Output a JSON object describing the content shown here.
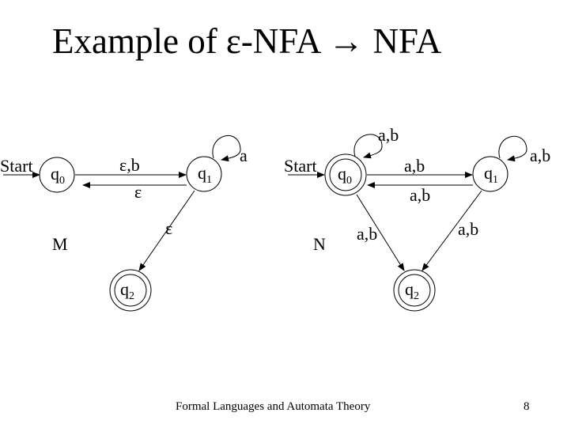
{
  "slide": {
    "title": "Example of ε-NFA → NFA",
    "footer": "Formal Languages and Automata Theory",
    "page_number": "8"
  },
  "diagrams": {
    "M": {
      "name": "M",
      "start_label": "Start",
      "states": [
        {
          "id": "q0",
          "base": "q",
          "sub": "0",
          "accepting": false
        },
        {
          "id": "q1",
          "base": "q",
          "sub": "1",
          "accepting": false
        },
        {
          "id": "q2",
          "base": "q",
          "sub": "2",
          "accepting": true
        }
      ],
      "transitions": [
        {
          "from": "q0",
          "to": "q1",
          "label": "ε,b"
        },
        {
          "from": "q1",
          "to": "q0",
          "label": "ε"
        },
        {
          "from": "q1",
          "to": "q1",
          "label": "a"
        },
        {
          "from": "q1",
          "to": "q2",
          "label": "ε"
        }
      ]
    },
    "N": {
      "name": "N",
      "start_label": "Start",
      "states": [
        {
          "id": "q0",
          "base": "q",
          "sub": "0",
          "accepting": true
        },
        {
          "id": "q1",
          "base": "q",
          "sub": "1",
          "accepting": false
        },
        {
          "id": "q2",
          "base": "q",
          "sub": "2",
          "accepting": true
        }
      ],
      "transitions": [
        {
          "from": "q0",
          "to": "q0",
          "label": "a,b"
        },
        {
          "from": "q0",
          "to": "q1",
          "label": "a,b"
        },
        {
          "from": "q1",
          "to": "q0",
          "label": "a,b"
        },
        {
          "from": "q1",
          "to": "q1",
          "label": "a,b"
        },
        {
          "from": "q0",
          "to": "q2",
          "label": "a,b"
        },
        {
          "from": "q1",
          "to": "q2",
          "label": "a,b"
        }
      ]
    }
  }
}
